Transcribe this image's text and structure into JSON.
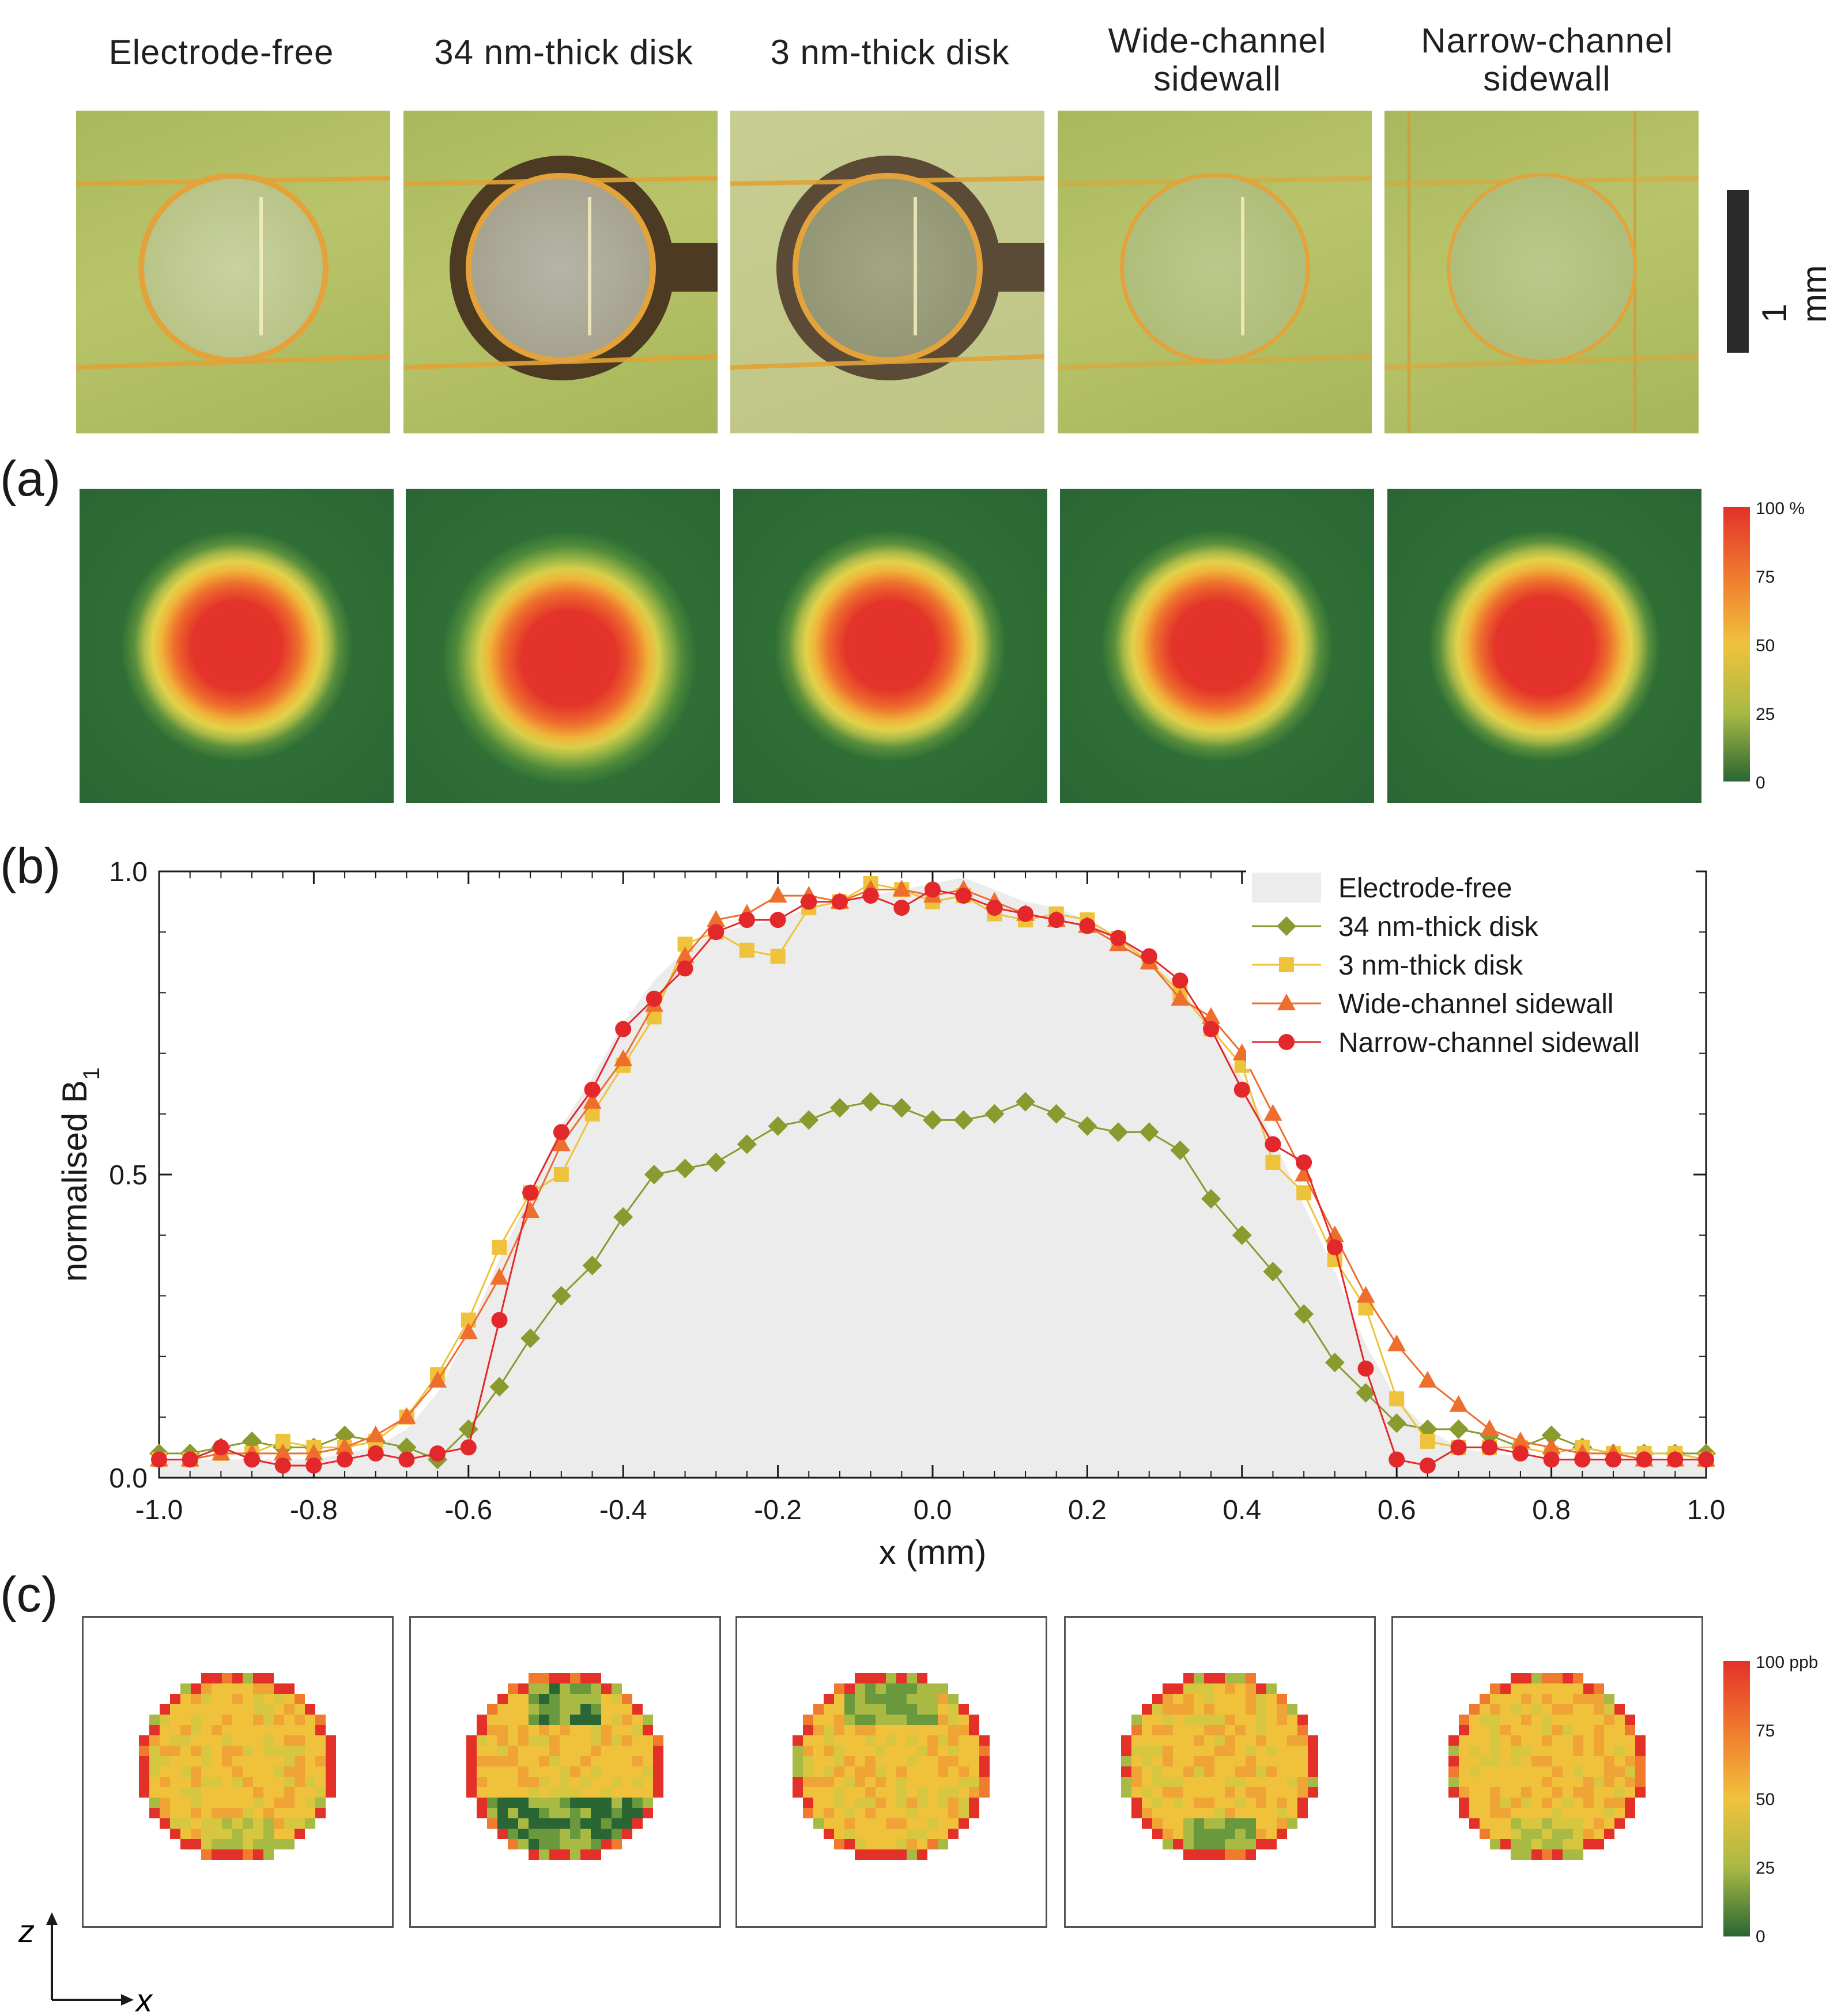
{
  "columns": [
    {
      "title_line1": "Electrode-free",
      "title_line2": ""
    },
    {
      "title_line1": "34 nm-thick disk",
      "title_line2": ""
    },
    {
      "title_line1": "3 nm-thick disk",
      "title_line2": ""
    },
    {
      "title_line1": "Wide-channel",
      "title_line2": "sidewall"
    },
    {
      "title_line1": "Narrow-channel",
      "title_line2": "sidewall"
    }
  ],
  "scalebar": {
    "label": "1 mm"
  },
  "panels": {
    "a": "(a)",
    "b": "(b)",
    "c": "(c)"
  },
  "colorbar_a": {
    "ticks": [
      "100 %",
      "75",
      "50",
      "25",
      "0"
    ],
    "colors": [
      "#e3312a",
      "#f07a2e",
      "#f0c23c",
      "#a8b944",
      "#2a6634"
    ]
  },
  "colorbar_c": {
    "ticks": [
      "100 ppb",
      "75",
      "50",
      "25",
      "0"
    ],
    "colors": [
      "#e3312a",
      "#f07a2e",
      "#f0c23c",
      "#a8b944",
      "#2a6634"
    ]
  },
  "axes_glyph": {
    "z": "z",
    "x": "x"
  },
  "chart_data": {
    "type": "line",
    "xlabel": "x (mm)",
    "ylabel": "normalised B",
    "ylabel_sub": "1",
    "xlim": [
      -1.0,
      1.0
    ],
    "ylim": [
      0.0,
      1.0
    ],
    "xticks": [
      "-1.0",
      "-0.8",
      "-0.6",
      "-0.4",
      "-0.2",
      "0.0",
      "0.2",
      "0.4",
      "0.6",
      "0.8",
      "1.0"
    ],
    "yticks": [
      "0.0",
      "0.5",
      "1.0"
    ],
    "legend_position": "top-right",
    "series": [
      {
        "name": "Electrode-free",
        "style": "area",
        "color": "#ececec",
        "x": [
          -1.0,
          -0.8,
          -0.72,
          -0.68,
          -0.64,
          -0.6,
          -0.56,
          -0.52,
          -0.48,
          -0.44,
          -0.4,
          -0.36,
          -0.32,
          -0.28,
          -0.24,
          -0.2,
          -0.16,
          -0.12,
          -0.08,
          -0.04,
          0.0,
          0.04,
          0.08,
          0.12,
          0.16,
          0.2,
          0.24,
          0.28,
          0.32,
          0.36,
          0.4,
          0.44,
          0.48,
          0.52,
          0.56,
          0.6,
          0.64,
          0.68,
          0.72,
          0.8,
          1.0
        ],
        "y": [
          0.03,
          0.03,
          0.05,
          0.08,
          0.14,
          0.24,
          0.36,
          0.47,
          0.58,
          0.66,
          0.75,
          0.82,
          0.87,
          0.9,
          0.91,
          0.92,
          0.94,
          0.95,
          0.96,
          0.97,
          0.98,
          0.99,
          0.97,
          0.95,
          0.94,
          0.92,
          0.89,
          0.86,
          0.81,
          0.74,
          0.66,
          0.56,
          0.45,
          0.34,
          0.22,
          0.13,
          0.08,
          0.05,
          0.04,
          0.03,
          0.03
        ]
      },
      {
        "name": "34 nm-thick disk",
        "style": "line",
        "marker": "diamond",
        "color": "#8a9a2e",
        "x": [
          -1.0,
          -0.96,
          -0.92,
          -0.88,
          -0.84,
          -0.8,
          -0.76,
          -0.72,
          -0.68,
          -0.64,
          -0.6,
          -0.56,
          -0.52,
          -0.48,
          -0.44,
          -0.4,
          -0.36,
          -0.32,
          -0.28,
          -0.24,
          -0.2,
          -0.16,
          -0.12,
          -0.08,
          -0.04,
          0.0,
          0.04,
          0.08,
          0.12,
          0.16,
          0.2,
          0.24,
          0.28,
          0.32,
          0.36,
          0.4,
          0.44,
          0.48,
          0.52,
          0.56,
          0.6,
          0.64,
          0.68,
          0.72,
          0.76,
          0.8,
          0.84,
          0.88,
          0.92,
          0.96,
          1.0
        ],
        "y": [
          0.04,
          0.04,
          0.05,
          0.06,
          0.05,
          0.05,
          0.07,
          0.06,
          0.05,
          0.03,
          0.08,
          0.15,
          0.23,
          0.3,
          0.35,
          0.43,
          0.5,
          0.51,
          0.52,
          0.55,
          0.58,
          0.59,
          0.61,
          0.62,
          0.61,
          0.59,
          0.59,
          0.6,
          0.62,
          0.6,
          0.58,
          0.57,
          0.57,
          0.54,
          0.46,
          0.4,
          0.34,
          0.27,
          0.19,
          0.14,
          0.09,
          0.08,
          0.08,
          0.07,
          0.05,
          0.07,
          0.05,
          0.04,
          0.04,
          0.04,
          0.04
        ]
      },
      {
        "name": "3 nm-thick disk",
        "style": "line",
        "marker": "square",
        "color": "#eec23a",
        "x": [
          -1.0,
          -0.96,
          -0.92,
          -0.88,
          -0.84,
          -0.8,
          -0.76,
          -0.72,
          -0.68,
          -0.64,
          -0.6,
          -0.56,
          -0.52,
          -0.48,
          -0.44,
          -0.4,
          -0.36,
          -0.32,
          -0.28,
          -0.24,
          -0.2,
          -0.16,
          -0.12,
          -0.08,
          -0.04,
          0.0,
          0.04,
          0.08,
          0.12,
          0.16,
          0.2,
          0.24,
          0.28,
          0.32,
          0.36,
          0.4,
          0.44,
          0.48,
          0.52,
          0.56,
          0.6,
          0.64,
          0.68,
          0.72,
          0.76,
          0.8,
          0.84,
          0.88,
          0.92,
          0.96,
          1.0
        ],
        "y": [
          0.03,
          0.03,
          0.04,
          0.04,
          0.06,
          0.05,
          0.05,
          0.06,
          0.1,
          0.17,
          0.26,
          0.38,
          0.47,
          0.5,
          0.6,
          0.68,
          0.76,
          0.88,
          0.9,
          0.87,
          0.86,
          0.94,
          0.95,
          0.98,
          0.97,
          0.95,
          0.96,
          0.93,
          0.92,
          0.93,
          0.92,
          0.89,
          0.85,
          0.8,
          0.74,
          0.68,
          0.52,
          0.47,
          0.36,
          0.28,
          0.13,
          0.06,
          0.05,
          0.05,
          0.05,
          0.04,
          0.05,
          0.04,
          0.04,
          0.04,
          0.03
        ]
      },
      {
        "name": "Wide-channel sidewall",
        "style": "line",
        "marker": "triangle",
        "color": "#ee6e2e",
        "x": [
          -1.0,
          -0.96,
          -0.92,
          -0.88,
          -0.84,
          -0.8,
          -0.76,
          -0.72,
          -0.68,
          -0.64,
          -0.6,
          -0.56,
          -0.52,
          -0.48,
          -0.44,
          -0.4,
          -0.36,
          -0.32,
          -0.28,
          -0.24,
          -0.2,
          -0.16,
          -0.12,
          -0.08,
          -0.04,
          0.0,
          0.04,
          0.08,
          0.12,
          0.16,
          0.2,
          0.24,
          0.28,
          0.32,
          0.36,
          0.4,
          0.44,
          0.48,
          0.52,
          0.56,
          0.6,
          0.64,
          0.68,
          0.72,
          0.76,
          0.8,
          0.84,
          0.88,
          0.92,
          0.96,
          1.0
        ],
        "y": [
          0.03,
          0.03,
          0.04,
          0.04,
          0.04,
          0.04,
          0.05,
          0.07,
          0.1,
          0.16,
          0.24,
          0.33,
          0.44,
          0.55,
          0.62,
          0.69,
          0.78,
          0.86,
          0.92,
          0.93,
          0.96,
          0.96,
          0.95,
          0.97,
          0.97,
          0.96,
          0.97,
          0.95,
          0.93,
          0.92,
          0.91,
          0.88,
          0.85,
          0.79,
          0.76,
          0.7,
          0.6,
          0.5,
          0.4,
          0.3,
          0.22,
          0.16,
          0.12,
          0.08,
          0.06,
          0.05,
          0.04,
          0.04,
          0.03,
          0.03,
          0.03
        ]
      },
      {
        "name": "Narrow-channel sidewall",
        "style": "line",
        "marker": "circle",
        "color": "#e3282c",
        "x": [
          -1.0,
          -0.96,
          -0.92,
          -0.88,
          -0.84,
          -0.8,
          -0.76,
          -0.72,
          -0.68,
          -0.64,
          -0.6,
          -0.56,
          -0.52,
          -0.48,
          -0.44,
          -0.4,
          -0.36,
          -0.32,
          -0.28,
          -0.24,
          -0.2,
          -0.16,
          -0.12,
          -0.08,
          -0.04,
          0.0,
          0.04,
          0.08,
          0.12,
          0.16,
          0.2,
          0.24,
          0.28,
          0.32,
          0.36,
          0.4,
          0.44,
          0.48,
          0.52,
          0.56,
          0.6,
          0.64,
          0.68,
          0.72,
          0.76,
          0.8,
          0.84,
          0.88,
          0.92,
          0.96,
          1.0
        ],
        "y": [
          0.03,
          0.03,
          0.05,
          0.03,
          0.02,
          0.02,
          0.03,
          0.04,
          0.03,
          0.04,
          0.05,
          0.26,
          0.47,
          0.57,
          0.64,
          0.74,
          0.79,
          0.84,
          0.9,
          0.92,
          0.92,
          0.95,
          0.95,
          0.96,
          0.94,
          0.97,
          0.96,
          0.94,
          0.93,
          0.92,
          0.91,
          0.89,
          0.86,
          0.82,
          0.74,
          0.64,
          0.55,
          0.52,
          0.38,
          0.18,
          0.03,
          0.02,
          0.05,
          0.05,
          0.04,
          0.03,
          0.03,
          0.03,
          0.03,
          0.03,
          0.03
        ]
      }
    ]
  }
}
